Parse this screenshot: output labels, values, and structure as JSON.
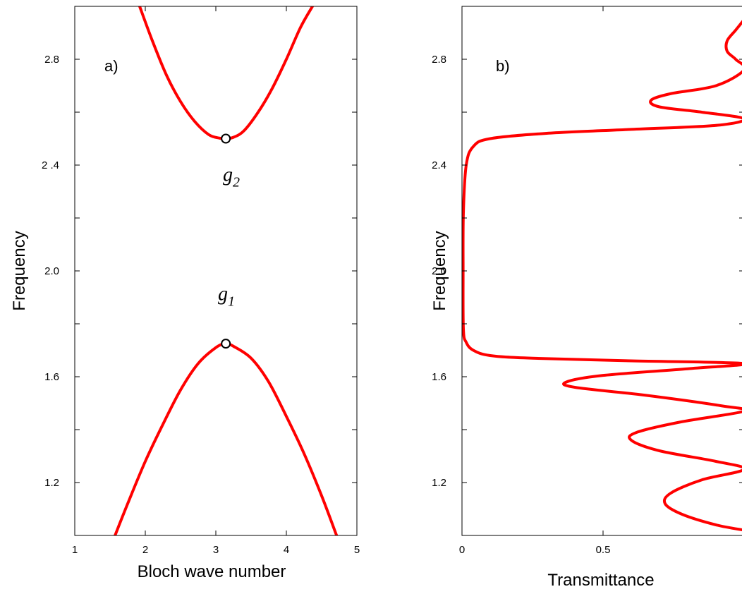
{
  "chart_data": [
    {
      "type": "line",
      "panel_label": "a)",
      "xlabel": "Bloch wave number",
      "ylabel": "Frequency",
      "xlim": [
        1,
        5
      ],
      "ylim": [
        1.0,
        3.0
      ],
      "x_ticks": [
        1,
        2,
        3,
        4,
        5
      ],
      "x_tick_labels": [
        "1",
        "2",
        "3",
        "4",
        "5"
      ],
      "y_ticks": [
        1.2,
        1.6,
        2.0,
        2.4,
        2.8
      ],
      "y_tick_labels": [
        "1.2",
        "1.6",
        "2.0",
        "2 .4",
        "2.8"
      ],
      "y_minor_ticks": [
        1.0,
        1.4,
        1.8,
        2.2,
        2.6,
        3.0
      ],
      "grid": false,
      "series": [
        {
          "color": "#ff0000",
          "x": [
            1.571,
            1.75,
            2.0,
            2.25,
            2.5,
            2.75,
            3.0,
            3.1416,
            3.25,
            3.5,
            3.75,
            4.0,
            4.25,
            4.5,
            4.712
          ],
          "y": [
            1.0,
            1.12,
            1.28,
            1.42,
            1.55,
            1.65,
            1.71,
            1.725,
            1.715,
            1.67,
            1.58,
            1.45,
            1.31,
            1.15,
            1.0
          ]
        },
        {
          "color": "#ff0000",
          "x": [
            1.92,
            2.1,
            2.3,
            2.5,
            2.7,
            2.9,
            3.05,
            3.1416,
            3.25,
            3.4,
            3.6,
            3.8,
            4.0,
            4.2,
            4.37
          ],
          "y": [
            3.0,
            2.87,
            2.74,
            2.64,
            2.565,
            2.515,
            2.502,
            2.5,
            2.505,
            2.53,
            2.6,
            2.69,
            2.8,
            2.92,
            3.0
          ]
        }
      ],
      "band_edge_markers": [
        {
          "x": 3.1416,
          "y": 2.5
        },
        {
          "x": 3.1416,
          "y": 1.725
        }
      ],
      "annotations": [
        {
          "base": "g",
          "sub": "2",
          "x": 3.1,
          "y": 2.34
        },
        {
          "base": "g",
          "sub": "1",
          "x": 3.03,
          "y": 1.89
        }
      ]
    },
    {
      "type": "line",
      "panel_label": "b)",
      "xlabel": "Transmittance",
      "ylabel": "Frequency",
      "xlim": [
        0,
        1.0
      ],
      "ylim": [
        1.0,
        3.0
      ],
      "x_ticks": [
        0,
        0.5,
        1.0
      ],
      "x_tick_labels": [
        "0",
        "0.5",
        ""
      ],
      "y_ticks": [
        1.2,
        1.6,
        2.0,
        2.4,
        2.8
      ],
      "y_tick_labels": [
        "1.2",
        "1.6",
        "2.0",
        "2.4",
        "2.8"
      ],
      "y_minor_ticks": [
        1.0,
        1.4,
        1.8,
        2.2,
        2.6,
        3.0
      ],
      "grid": false,
      "series": [
        {
          "color": "#ff0000",
          "x": [
            1.0,
            0.9,
            0.78,
            0.72,
            0.74,
            0.85,
            1.0,
            0.9,
            0.7,
            0.6,
            0.62,
            0.78,
            1.0,
            0.92,
            0.65,
            0.4,
            0.37,
            0.5,
            0.8,
            1.0,
            0.6,
            0.25,
            0.1,
            0.04,
            0.015,
            0.005,
            0.004,
            0.005,
            0.015,
            0.04,
            0.1,
            0.3,
            0.6,
            0.9,
            1.0,
            0.85,
            0.7,
            0.67,
            0.74,
            0.9,
            1.0,
            0.97,
            0.94,
            0.94,
            0.97,
            1.0
          ],
          "y": [
            1.02,
            1.04,
            1.08,
            1.12,
            1.16,
            1.21,
            1.25,
            1.28,
            1.32,
            1.36,
            1.39,
            1.43,
            1.47,
            1.49,
            1.53,
            1.56,
            1.58,
            1.605,
            1.63,
            1.65,
            1.66,
            1.67,
            1.68,
            1.7,
            1.73,
            1.78,
            2.0,
            2.22,
            2.4,
            2.47,
            2.5,
            2.52,
            2.535,
            2.55,
            2.575,
            2.6,
            2.62,
            2.645,
            2.67,
            2.7,
            2.76,
            2.8,
            2.83,
            2.87,
            2.91,
            2.95
          ]
        }
      ],
      "annotations": []
    }
  ]
}
